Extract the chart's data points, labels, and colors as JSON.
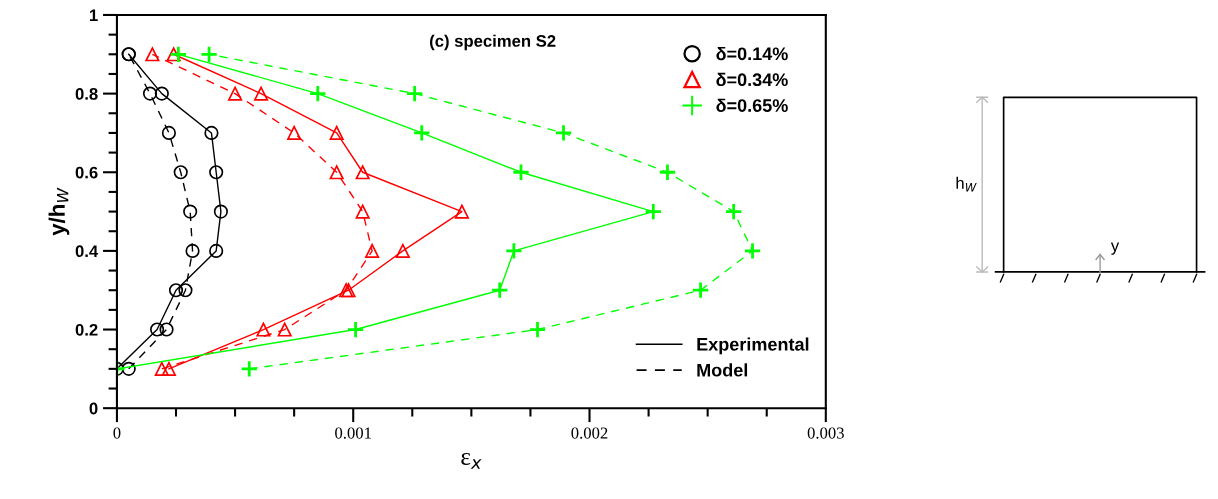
{
  "chart_data": {
    "type": "line",
    "title": "(c) specimen S2",
    "xlabel": "ε$_{x}$",
    "ylabel": "y/h$_{W}$",
    "x": [
      0.1,
      0.2,
      0.3,
      0.4,
      0.5,
      0.6,
      0.7,
      0.8,
      0.9
    ],
    "orientation": "horizontal",
    "xlim": [
      0,
      0.003
    ],
    "xticks": [
      0,
      0.001,
      0.002,
      0.003
    ],
    "ylim": [
      0,
      1
    ],
    "yticks": [
      0,
      0.2,
      0.4,
      0.6,
      0.8,
      1
    ],
    "grid": false,
    "legend": "top right",
    "series": [
      {
        "name": "δ=0.14%",
        "color": "#000000",
        "marker": "circle",
        "line_style": "solid",
        "values": [
          0,
          0.00017,
          0.00025,
          0.00042,
          0.00044,
          0.00042,
          0.0004,
          0.00019,
          5e-05
        ]
      },
      {
        "color": "#000000",
        "marker": "circle",
        "line_style": "dashed",
        "values": [
          5e-05,
          0.00021,
          0.00029,
          0.00032,
          0.00031,
          0.00027,
          0.00022,
          0.00014,
          5e-05
        ]
      },
      {
        "name": "δ=0.34%",
        "color": "#ff0000",
        "marker": "triangle",
        "line_style": "solid",
        "values": [
          0.00022,
          0.00062,
          0.00098,
          0.00121,
          0.00146,
          0.00104,
          0.00093,
          0.00061,
          0.00024
        ]
      },
      {
        "color": "#ff0000",
        "marker": "triangle",
        "line_style": "dashed",
        "values": [
          0.00019,
          0.00071,
          0.00097,
          0.00108,
          0.00104,
          0.00093,
          0.00075,
          0.0005,
          0.00015
        ]
      },
      {
        "name": "δ=0.65%",
        "color": "#00ff00",
        "marker": "cross",
        "line_style": "solid",
        "values": [
          0,
          0.00101,
          0.00162,
          0.00168,
          0.00227,
          0.00171,
          0.00129,
          0.00085,
          0.00026
        ]
      },
      {
        "color": "#00ff00",
        "marker": "cross",
        "line_style": "dashed",
        "values": [
          0.00056,
          0.00178,
          0.00247,
          0.00269,
          0.00261,
          0.00233,
          0.00189,
          0.00126,
          0.00039
        ]
      }
    ],
    "annotations": [
      "Experimental",
      "Model",
      "h$_{W}$",
      "y"
    ]
  }
}
